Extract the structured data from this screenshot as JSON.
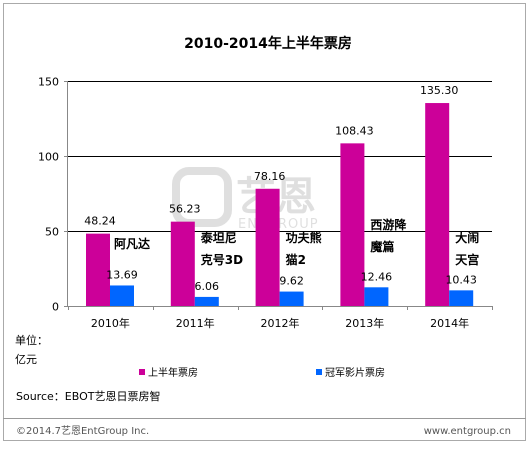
{
  "chart_data": {
    "type": "bar",
    "title": "2010-2014年上半年票房",
    "unit_label": [
      "单位：",
      "亿元"
    ],
    "categories": [
      "2010年",
      "2011年",
      "2012年",
      "2013年",
      "2014年"
    ],
    "ylim": [
      0,
      150
    ],
    "yticks": [
      0,
      50,
      100,
      150
    ],
    "grid": true,
    "legend_position": "bottom",
    "series": [
      {
        "name": "上半年票房",
        "color": "#cc0099",
        "values": [
          48.24,
          56.23,
          78.16,
          108.43,
          135.3
        ],
        "value_labels": [
          "48.24",
          "56.23",
          "78.16",
          "108.43",
          "135.30"
        ]
      },
      {
        "name": "冠军影片票房",
        "color": "#0066ff",
        "values": [
          13.69,
          6.06,
          9.62,
          12.46,
          10.43
        ],
        "value_labels": [
          "13.69",
          "6.06",
          "9.62",
          "12.46",
          "10.43"
        ]
      }
    ],
    "annotations": [
      [
        "阿凡达"
      ],
      [
        "泰坦尼",
        "克号3D"
      ],
      [
        "功夫熊",
        "猫2"
      ],
      [
        "西游降",
        "魔篇"
      ],
      [
        "大闹",
        "天宫"
      ]
    ]
  },
  "footer": {
    "source": "Source：EBOT艺恩日票房智",
    "copyright": "©2014.7艺恩EntGroup Inc.",
    "website": "www.entgroup.cn"
  },
  "watermark": {
    "text": "艺恩",
    "subtext": "ENTGROUP"
  },
  "colors": {
    "frame_border": "#aaaaaa",
    "grid": "#000000",
    "axis": "#888888",
    "footer_divider": "#999999"
  }
}
